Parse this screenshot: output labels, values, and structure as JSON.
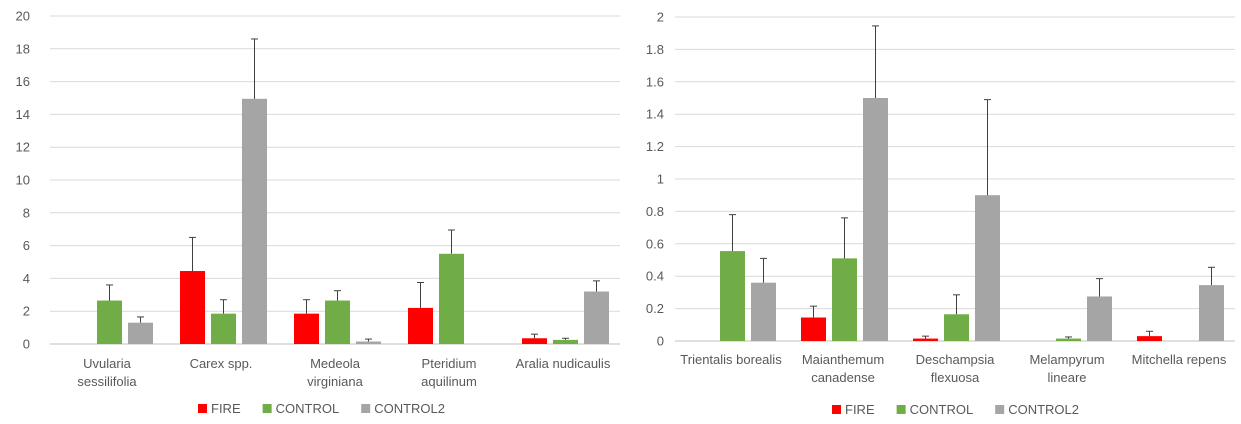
{
  "chart_data": [
    {
      "type": "bar",
      "categories": [
        [
          "Uvularia",
          "sessilifolia"
        ],
        [
          "Carex spp."
        ],
        [
          "Medeola",
          "virginiana"
        ],
        [
          "Pteridium",
          "aquilinum"
        ],
        [
          "Aralia nudicaulis"
        ]
      ],
      "ylim": [
        0,
        20
      ],
      "yticks": [
        0,
        2,
        4,
        6,
        8,
        10,
        12,
        14,
        16,
        18,
        20
      ],
      "grid": true,
      "legend_position": "bottom",
      "series": [
        {
          "name": "FIRE",
          "color": "#ff0000",
          "values": [
            0,
            4.45,
            1.85,
            2.2,
            0.35
          ],
          "errors": [
            0,
            2.05,
            0.85,
            1.55,
            0.25
          ]
        },
        {
          "name": "CONTROL",
          "color": "#70ad47",
          "values": [
            2.65,
            1.85,
            2.65,
            5.5,
            0.25
          ],
          "errors": [
            0.95,
            0.85,
            0.6,
            1.45,
            0.1
          ]
        },
        {
          "name": "CONTROL2",
          "color": "#a5a5a5",
          "values": [
            1.3,
            14.95,
            0.15,
            0,
            3.2
          ],
          "errors": [
            0.35,
            3.65,
            0.15,
            0,
            0.65
          ]
        }
      ]
    },
    {
      "type": "bar",
      "categories": [
        [
          "Trientalis borealis"
        ],
        [
          "Maianthemum",
          "canadense"
        ],
        [
          "Deschampsia",
          "flexuosa"
        ],
        [
          "Melampyrum",
          "lineare"
        ],
        [
          "Mitchella repens"
        ]
      ],
      "ylim": [
        0,
        2
      ],
      "yticks": [
        "0",
        "0.2",
        "0.4",
        "0.6",
        "0.8",
        "1",
        "1.2",
        "1.4",
        "1.6",
        "1.8",
        "2"
      ],
      "grid": true,
      "legend_position": "bottom",
      "series": [
        {
          "name": "FIRE",
          "color": "#ff0000",
          "values": [
            0,
            0.145,
            0.015,
            0,
            0.03
          ],
          "errors": [
            0,
            0.07,
            0.015,
            0,
            0.03
          ]
        },
        {
          "name": "CONTROL",
          "color": "#70ad47",
          "values": [
            0.555,
            0.51,
            0.165,
            0.015,
            0
          ],
          "errors": [
            0.225,
            0.25,
            0.12,
            0.01,
            0
          ]
        },
        {
          "name": "CONTROL2",
          "color": "#a5a5a5",
          "values": [
            0.36,
            1.5,
            0.9,
            0.275,
            0.345
          ],
          "errors": [
            0.15,
            0.445,
            0.59,
            0.11,
            0.11
          ]
        }
      ]
    }
  ]
}
